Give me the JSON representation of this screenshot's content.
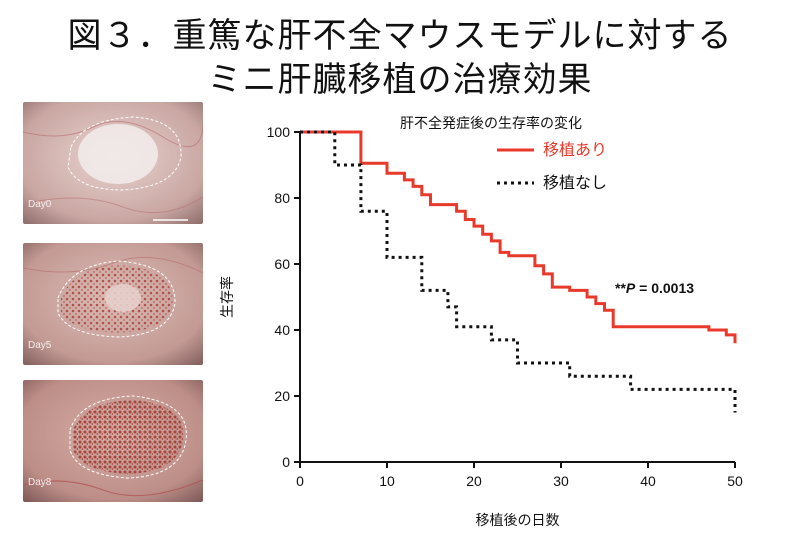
{
  "title": {
    "line1": "図３．重篤な肝不全マウスモデルに対する",
    "line2": "ミニ肝臓移植の治療効果"
  },
  "photos": [
    {
      "label": "Day0",
      "stage": "pale"
    },
    {
      "label": "Day5",
      "stage": "speckled"
    },
    {
      "label": "Day8",
      "stage": "vascularized"
    }
  ],
  "chart_data": {
    "type": "line",
    "subtype": "kaplan-meier step",
    "legend_title": "肝不全発症後の生存率の変化",
    "legend_position": "top-right",
    "xlabel": "移植後の日数",
    "ylabel": "生存率",
    "xlim": [
      0,
      50
    ],
    "ylim": [
      0,
      100
    ],
    "x_ticks": [
      0,
      10,
      20,
      30,
      40,
      50
    ],
    "y_ticks": [
      0,
      20,
      40,
      60,
      80,
      100
    ],
    "annotation": {
      "prefix": "**",
      "italic": "P",
      "rest": " = 0.0013"
    },
    "series": [
      {
        "name": "移植あり",
        "color": "#e8392b",
        "style": "solid",
        "points": [
          [
            0,
            100
          ],
          [
            7,
            100
          ],
          [
            7,
            90.5
          ],
          [
            10,
            90.5
          ],
          [
            10,
            87.5
          ],
          [
            12,
            87.5
          ],
          [
            12,
            85.5
          ],
          [
            13,
            85.5
          ],
          [
            13,
            83.5
          ],
          [
            14,
            83.5
          ],
          [
            14,
            81
          ],
          [
            15,
            81
          ],
          [
            15,
            78
          ],
          [
            18,
            78
          ],
          [
            18,
            76
          ],
          [
            19,
            76
          ],
          [
            19,
            73.5
          ],
          [
            20,
            73.5
          ],
          [
            20,
            71.5
          ],
          [
            21,
            71.5
          ],
          [
            21,
            69
          ],
          [
            22,
            69
          ],
          [
            22,
            67
          ],
          [
            23,
            67
          ],
          [
            23,
            63.5
          ],
          [
            24,
            63.5
          ],
          [
            24,
            62.5
          ],
          [
            27,
            62.5
          ],
          [
            27,
            59.5
          ],
          [
            28,
            59.5
          ],
          [
            28,
            57
          ],
          [
            29,
            57
          ],
          [
            29,
            53
          ],
          [
            31,
            53
          ],
          [
            31,
            52
          ],
          [
            33,
            52
          ],
          [
            33,
            50
          ],
          [
            34,
            50
          ],
          [
            34,
            48
          ],
          [
            35,
            48
          ],
          [
            35,
            46
          ],
          [
            36,
            46
          ],
          [
            36,
            41
          ],
          [
            47,
            41
          ],
          [
            47,
            40
          ],
          [
            49,
            40
          ],
          [
            49,
            38.5
          ],
          [
            50,
            38.5
          ],
          [
            50,
            36
          ]
        ]
      },
      {
        "name": "移植なし",
        "color": "#111111",
        "style": "dotted",
        "points": [
          [
            0,
            100
          ],
          [
            4,
            100
          ],
          [
            4,
            90
          ],
          [
            7,
            90
          ],
          [
            7,
            76
          ],
          [
            10,
            76
          ],
          [
            10,
            62
          ],
          [
            14,
            62
          ],
          [
            14,
            52
          ],
          [
            17,
            52
          ],
          [
            17,
            47
          ],
          [
            18,
            47
          ],
          [
            18,
            41
          ],
          [
            22,
            41
          ],
          [
            22,
            37
          ],
          [
            25,
            37
          ],
          [
            25,
            30
          ],
          [
            31,
            30
          ],
          [
            31,
            26
          ],
          [
            38,
            26
          ],
          [
            38,
            22
          ],
          [
            50,
            22
          ],
          [
            50,
            15
          ]
        ]
      }
    ]
  }
}
